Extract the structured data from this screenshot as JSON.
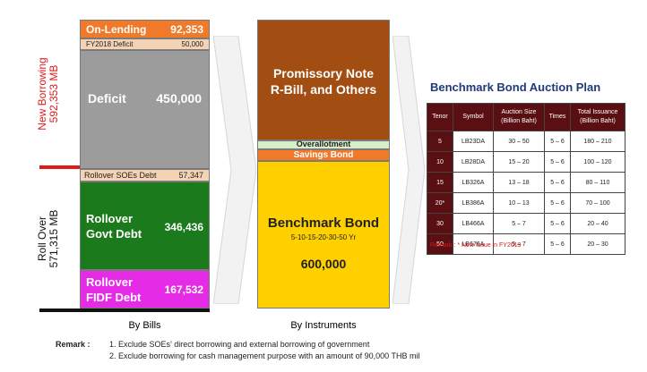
{
  "chart_data": {
    "type": "stacked-bar",
    "bars": [
      {
        "name": "By Bills",
        "segments": [
          {
            "label": "On-Lending",
            "value": 92353,
            "display": "92,353",
            "color": "#f07a2a"
          },
          {
            "label": "FY2018 Deficit",
            "value": 50000,
            "display": "50,000",
            "color": "#f3d3b3"
          },
          {
            "label": "Deficit",
            "value": 450000,
            "display": "450,000",
            "color": "#9c9c9c"
          },
          {
            "label": "Rollover SOEs Debt",
            "value": 57347,
            "display": "57,347",
            "color": "#f3d3b3"
          },
          {
            "label": "Rollover\nGovt Debt",
            "value": 346436,
            "display": "346,436",
            "color": "#1b7a1b"
          },
          {
            "label": "Rollover\nFIDF Debt",
            "value": 167532,
            "display": "167,532",
            "color": "#e62be6"
          }
        ]
      },
      {
        "name": "By Instruments",
        "segments": [
          {
            "label": "Promissory Note\nR-Bill, and Others",
            "color": "#a24d12"
          },
          {
            "label": "Overallotment",
            "color": "#d8eec8"
          },
          {
            "label": "Savings Bond",
            "color": "#f07a2a"
          },
          {
            "label": "Benchmark Bond",
            "sublabel": "5-10-15-20-30-50  Yr",
            "value": 600000,
            "display": "600,000",
            "color": "#ffd000"
          }
        ]
      }
    ],
    "groups": [
      {
        "label": "New Borrowing\n592,353 MB",
        "color": "#e01a1a"
      },
      {
        "label": "Roll Over\n571,315  MB",
        "color": "#111111"
      }
    ]
  },
  "plan": {
    "title": "Benchmark Bond Auction Plan",
    "headers": [
      "Tenor",
      "Symbol",
      "Auction Size\n(Billion Baht)",
      "Times",
      "Total Issuance\n(Billion Baht)"
    ],
    "rows": [
      [
        "5",
        "LB23DA",
        "30  –  50",
        "5  –  6",
        "180  –  210"
      ],
      [
        "10",
        "LB28DA",
        "15  –  20",
        "5  –  6",
        "100  –  120"
      ],
      [
        "15",
        "LB326A",
        "13  –  18",
        "5  –  6",
        "80  –  110"
      ],
      [
        "20*",
        "LB386A",
        "10  –  13",
        "5  –  6",
        "70  –  100"
      ],
      [
        "30",
        "LB466A",
        "5  –  7",
        "5  –  6",
        "20  –  40"
      ],
      [
        "50",
        "LB676A",
        "5  –  7",
        "5  –  6",
        "20  –  30"
      ]
    ],
    "remark": "Remark : * New Issue in FY2019"
  },
  "footer": {
    "remark_label": "Remark :",
    "notes": [
      "1. Exclude SOEs’ direct borrowing and external borrowing of government",
      "2. Exclude  borrowing for cash management purpose with an amount of 90,000 THB mil"
    ]
  }
}
